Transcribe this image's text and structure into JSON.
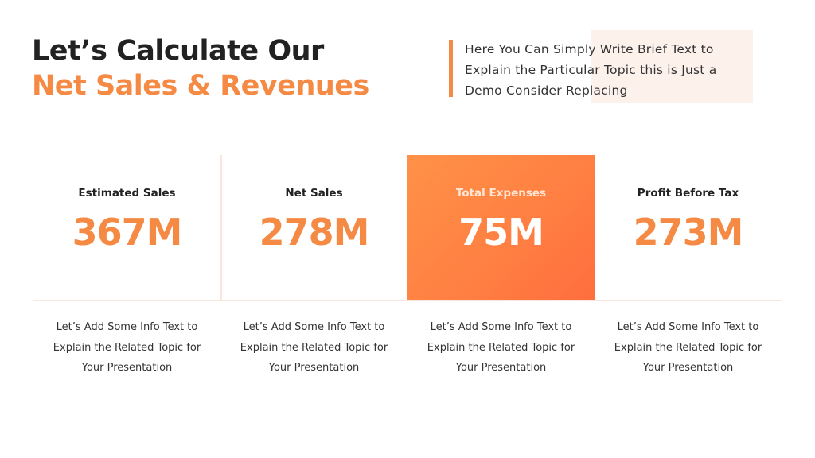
{
  "header": {
    "title_line1": "Let’s Calculate Our",
    "title_line2": "Net Sales & Revenues"
  },
  "callout": {
    "lines": [
      "Here You Can Simply Write Brief Text to",
      "Explain the Particular Topic this is Just a",
      "Demo Consider Replacing"
    ]
  },
  "colors": {
    "accent": "#f58a45",
    "highlight_gradient_start": "#ff9147",
    "highlight_gradient_end": "#ff6e3e",
    "divider": "#fbe6de",
    "callout_bg": "#fdf1ec",
    "text_dark": "#222222"
  },
  "metrics": [
    {
      "label": "Estimated Sales",
      "value": "367M",
      "highlighted": false,
      "info": [
        "Let’s Add Some Info Text to",
        "Explain the Related Topic for",
        "Your Presentation"
      ]
    },
    {
      "label": "Net Sales",
      "value": "278M",
      "highlighted": false,
      "info": [
        "Let’s Add Some Info Text to",
        "Explain the Related Topic for",
        "Your Presentation"
      ]
    },
    {
      "label": "Total Expenses",
      "value": "75M",
      "highlighted": true,
      "info": [
        "Let’s Add Some Info Text to",
        "Explain the Related Topic for",
        "Your Presentation"
      ]
    },
    {
      "label": "Profit Before Tax",
      "value": "273M",
      "highlighted": false,
      "info": [
        "Let’s Add Some Info Text to",
        "Explain the Related Topic for",
        "Your Presentation"
      ]
    }
  ]
}
